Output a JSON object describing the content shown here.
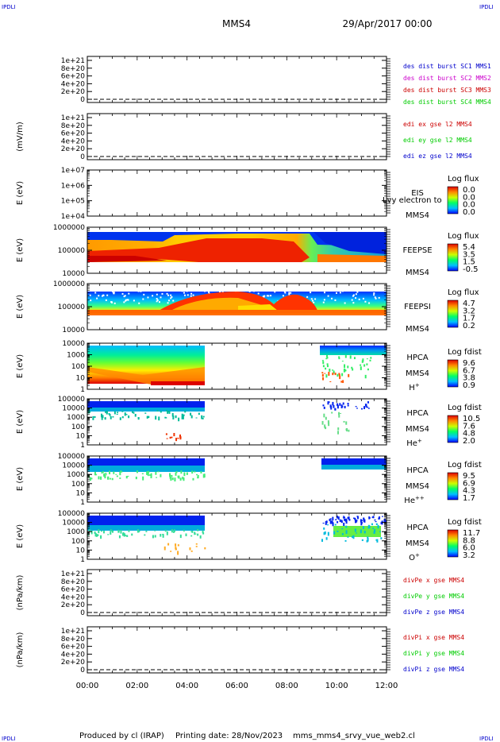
{
  "header": {
    "corner_tl": "IPDLI",
    "corner_tr": "IPDLI",
    "spacecraft": "MMS4",
    "datetime": "29/Apr/2017 00:00",
    "corner_bl": "IPDLI",
    "corner_br": "IPDLI"
  },
  "footer": {
    "produced": "Produced by cl (IRAP)",
    "printing": "Printing date: 28/Nov/2023",
    "script": "mms_mms4_srvy_vue_web2.cl"
  },
  "colors": {
    "red": "#cc0000",
    "green": "#00cc00",
    "blue": "#0000cc",
    "magenta": "#cc00cc"
  },
  "chart_data": [
    {
      "type": "line",
      "name": "des dist burst",
      "yticks": [
        "1e+21",
        "8e+20",
        "6e+20",
        "4e+20",
        "2e+20",
        "0"
      ],
      "ylabel": "",
      "legend": [
        {
          "text": "des dist burst SC1 MMS1",
          "color": "#0000cc"
        },
        {
          "text": "des dist burst SC2 MMS2",
          "color": "#cc00cc"
        },
        {
          "text": "des dist burst SC3 MMS3",
          "color": "#cc0000"
        },
        {
          "text": "des dist burst SC4 MMS4",
          "color": "#00cc00"
        }
      ]
    },
    {
      "type": "line",
      "name": "edi",
      "yticks": [
        "1e+21",
        "8e+20",
        "6e+20",
        "4e+20",
        "2e+20",
        "0"
      ],
      "ylabel": "(mV/m)",
      "legend": [
        {
          "text": "edi ex gse l2 MMS4",
          "color": "#cc0000"
        },
        {
          "text": "edi ey gse l2 MMS4",
          "color": "#00cc00"
        },
        {
          "text": "edi ez gse l2 MMS4",
          "color": "#0000cc"
        }
      ]
    },
    {
      "type": "heatmap",
      "name": "EIS",
      "yticks": [
        "1e+07",
        "1e+06",
        "1e+05",
        "1e+04"
      ],
      "ylabel": "E (eV)",
      "instrument": [
        "EIS",
        "MMS4"
      ],
      "overlay": "Lvy electron to",
      "colorbar_title": "Log flux",
      "colorbar_ticks": [
        "0.0",
        "0.0",
        "0.0",
        "0.0"
      ]
    },
    {
      "type": "heatmap",
      "name": "FEEPSE",
      "yticks": [
        "1000000",
        "100000",
        "10000"
      ],
      "ylabel": "E (eV)",
      "instrument": [
        "FEEPSE",
        "MMS4"
      ],
      "colorbar_title": "Log flux",
      "colorbar_ticks": [
        "5.4",
        "3.5",
        "1.5",
        "-0.5"
      ]
    },
    {
      "type": "heatmap",
      "name": "FEEPSI",
      "yticks": [
        "1000000",
        "100000",
        "10000"
      ],
      "ylabel": "E (eV)",
      "instrument": [
        "FEEPSI",
        "MMS4"
      ],
      "colorbar_title": "Log flux",
      "colorbar_ticks": [
        "4.7",
        "3.2",
        "1.7",
        "0.2"
      ]
    },
    {
      "type": "heatmap",
      "name": "HPCA H+",
      "yticks": [
        "10000",
        "1000",
        "100",
        "10",
        "1"
      ],
      "ylabel": "E (eV)",
      "instrument": [
        "HPCA",
        "MMS4",
        "H",
        "+"
      ],
      "colorbar_title": "Log fdist",
      "colorbar_ticks": [
        "9.6",
        "6.7",
        "3.8",
        "0.9"
      ]
    },
    {
      "type": "heatmap",
      "name": "HPCA He+",
      "yticks": [
        "100000",
        "10000",
        "1000",
        "100",
        "10",
        "1"
      ],
      "ylabel": "E (eV)",
      "instrument": [
        "HPCA",
        "MMS4",
        "He",
        "+"
      ],
      "colorbar_title": "Log fdist",
      "colorbar_ticks": [
        "10.5",
        "7.6",
        "4.8",
        "2.0"
      ]
    },
    {
      "type": "heatmap",
      "name": "HPCA He++",
      "yticks": [
        "100000",
        "10000",
        "1000",
        "100",
        "10",
        "1"
      ],
      "ylabel": "E (eV)",
      "instrument": [
        "HPCA",
        "MMS4",
        "He",
        "++"
      ],
      "colorbar_title": "Log fdist",
      "colorbar_ticks": [
        "9.5",
        "6.9",
        "4.3",
        "1.7"
      ]
    },
    {
      "type": "heatmap",
      "name": "HPCA O+",
      "yticks": [
        "100000",
        "10000",
        "1000",
        "100",
        "10",
        "1"
      ],
      "ylabel": "E (eV)",
      "instrument": [
        "HPCA",
        "MMS4",
        "O",
        "+"
      ],
      "colorbar_title": "Log fdist",
      "colorbar_ticks": [
        "11.7",
        "8.8",
        "6.0",
        "3.2"
      ]
    },
    {
      "type": "line",
      "name": "divPe",
      "yticks": [
        "1e+21",
        "8e+20",
        "6e+20",
        "4e+20",
        "2e+20",
        "0"
      ],
      "ylabel": "(nPa/km)",
      "legend": [
        {
          "text": "divPe x gse MMS4",
          "color": "#cc0000"
        },
        {
          "text": "divPe y gse MMS4",
          "color": "#00cc00"
        },
        {
          "text": "divPe z gse MMS4",
          "color": "#0000cc"
        }
      ]
    },
    {
      "type": "line",
      "name": "divPi",
      "yticks": [
        "1e+21",
        "8e+20",
        "6e+20",
        "4e+20",
        "2e+20",
        "0"
      ],
      "ylabel": "(nPa/km)",
      "legend": [
        {
          "text": "divPi x gse MMS4",
          "color": "#cc0000"
        },
        {
          "text": "divPi y gse MMS4",
          "color": "#00cc00"
        },
        {
          "text": "divPi z gse MMS4",
          "color": "#0000cc"
        }
      ]
    }
  ],
  "xaxis": {
    "ticks": [
      "00:00",
      "02:00",
      "04:00",
      "06:00",
      "08:00",
      "10:00",
      "12:00"
    ]
  }
}
